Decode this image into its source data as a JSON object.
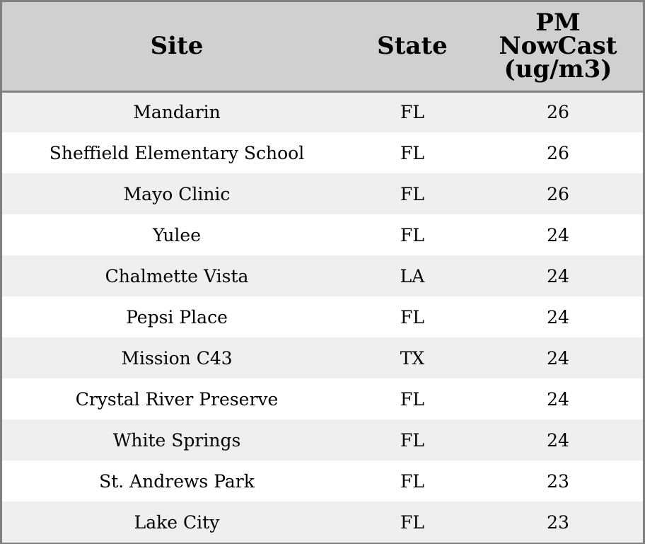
{
  "chart_data": {
    "type": "table",
    "columns": [
      "Site",
      "State",
      "PM NowCast (ug/m3)"
    ],
    "header_lines": {
      "pm": [
        "PM",
        "NowCast",
        "(ug/m3)"
      ]
    },
    "rows": [
      {
        "site": "Mandarin",
        "state": "FL",
        "pm": "26"
      },
      {
        "site": "Sheffield Elementary School",
        "state": "FL",
        "pm": "26"
      },
      {
        "site": "Mayo Clinic",
        "state": "FL",
        "pm": "26"
      },
      {
        "site": "Yulee",
        "state": "FL",
        "pm": "24"
      },
      {
        "site": "Chalmette Vista",
        "state": "LA",
        "pm": "24"
      },
      {
        "site": "Pepsi Place",
        "state": "FL",
        "pm": "24"
      },
      {
        "site": "Mission C43",
        "state": "TX",
        "pm": "24"
      },
      {
        "site": "Crystal River Preserve",
        "state": "FL",
        "pm": "24"
      },
      {
        "site": "White Springs",
        "state": "FL",
        "pm": "24"
      },
      {
        "site": "St. Andrews Park",
        "state": "FL",
        "pm": "23"
      },
      {
        "site": "Lake City",
        "state": "FL",
        "pm": "23"
      }
    ]
  },
  "colors": {
    "header_bg": "#d0d0d0",
    "stripe_bg": "#efefef",
    "border": "#7f7f7f"
  }
}
